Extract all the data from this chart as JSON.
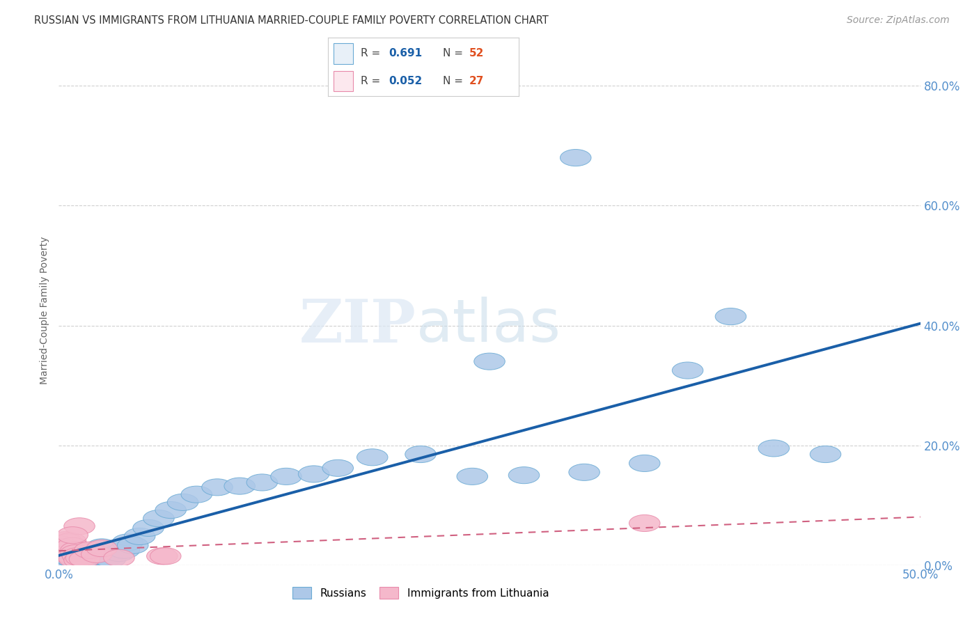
{
  "title": "RUSSIAN VS IMMIGRANTS FROM LITHUANIA MARRIED-COUPLE FAMILY POVERTY CORRELATION CHART",
  "source": "Source: ZipAtlas.com",
  "ylabel": "Married-Couple Family Poverty",
  "xlim": [
    0.0,
    0.5
  ],
  "ylim": [
    0.0,
    0.85
  ],
  "xticks": [
    0.0,
    0.1,
    0.2,
    0.3,
    0.4,
    0.5
  ],
  "yticks": [
    0.0,
    0.2,
    0.4,
    0.6,
    0.8
  ],
  "xticklabels": [
    "0.0%",
    "",
    "",
    "",
    "",
    "50.0%"
  ],
  "yticklabels_right": [
    "0.0%",
    "20.0%",
    "40.0%",
    "60.0%",
    "80.0%"
  ],
  "russians_R": "0.691",
  "russians_N": "52",
  "lithuania_R": "0.052",
  "lithuania_N": "27",
  "russian_color": "#adc8e8",
  "russian_edge_color": "#6aaad4",
  "russian_line_color": "#1a5fa8",
  "lithuania_color": "#f5b8cb",
  "lithuania_edge_color": "#e88aaa",
  "lithuania_line_color": "#d06080",
  "background_color": "#ffffff",
  "watermark_zip": "ZIP",
  "watermark_atlas": "atlas",
  "grid_color": "#d0d0d0",
  "tick_color": "#5590cc",
  "legend_box_color": "#e8f0f8",
  "legend_box2_color": "#fce8ee",
  "russians_x": [
    0.001,
    0.002,
    0.003,
    0.004,
    0.005,
    0.006,
    0.007,
    0.008,
    0.009,
    0.01,
    0.011,
    0.012,
    0.013,
    0.014,
    0.015,
    0.016,
    0.017,
    0.018,
    0.019,
    0.02,
    0.022,
    0.025,
    0.028,
    0.03,
    0.035,
    0.038,
    0.04,
    0.043,
    0.047,
    0.052,
    0.058,
    0.065,
    0.072,
    0.08,
    0.092,
    0.105,
    0.118,
    0.132,
    0.148,
    0.162,
    0.182,
    0.21,
    0.24,
    0.27,
    0.305,
    0.34,
    0.365,
    0.39,
    0.415,
    0.445,
    0.3,
    0.25
  ],
  "russians_y": [
    0.02,
    0.018,
    0.015,
    0.012,
    0.01,
    0.008,
    0.012,
    0.01,
    0.015,
    0.012,
    0.01,
    0.015,
    0.01,
    0.008,
    0.013,
    0.01,
    0.012,
    0.018,
    0.015,
    0.022,
    0.025,
    0.03,
    0.012,
    0.01,
    0.02,
    0.025,
    0.038,
    0.033,
    0.048,
    0.062,
    0.078,
    0.092,
    0.105,
    0.118,
    0.13,
    0.132,
    0.138,
    0.148,
    0.152,
    0.162,
    0.18,
    0.185,
    0.148,
    0.15,
    0.155,
    0.17,
    0.325,
    0.415,
    0.195,
    0.185,
    0.68,
    0.34
  ],
  "lithuania_x": [
    0.001,
    0.002,
    0.003,
    0.004,
    0.005,
    0.005,
    0.006,
    0.007,
    0.007,
    0.008,
    0.008,
    0.009,
    0.01,
    0.01,
    0.011,
    0.012,
    0.013,
    0.015,
    0.018,
    0.022,
    0.025,
    0.035,
    0.06,
    0.34,
    0.062,
    0.012,
    0.008
  ],
  "lithuania_y": [
    0.035,
    0.03,
    0.025,
    0.042,
    0.038,
    0.018,
    0.028,
    0.022,
    0.04,
    0.015,
    0.032,
    0.01,
    0.025,
    0.02,
    0.015,
    0.008,
    0.012,
    0.01,
    0.025,
    0.018,
    0.028,
    0.012,
    0.015,
    0.07,
    0.015,
    0.065,
    0.05
  ]
}
